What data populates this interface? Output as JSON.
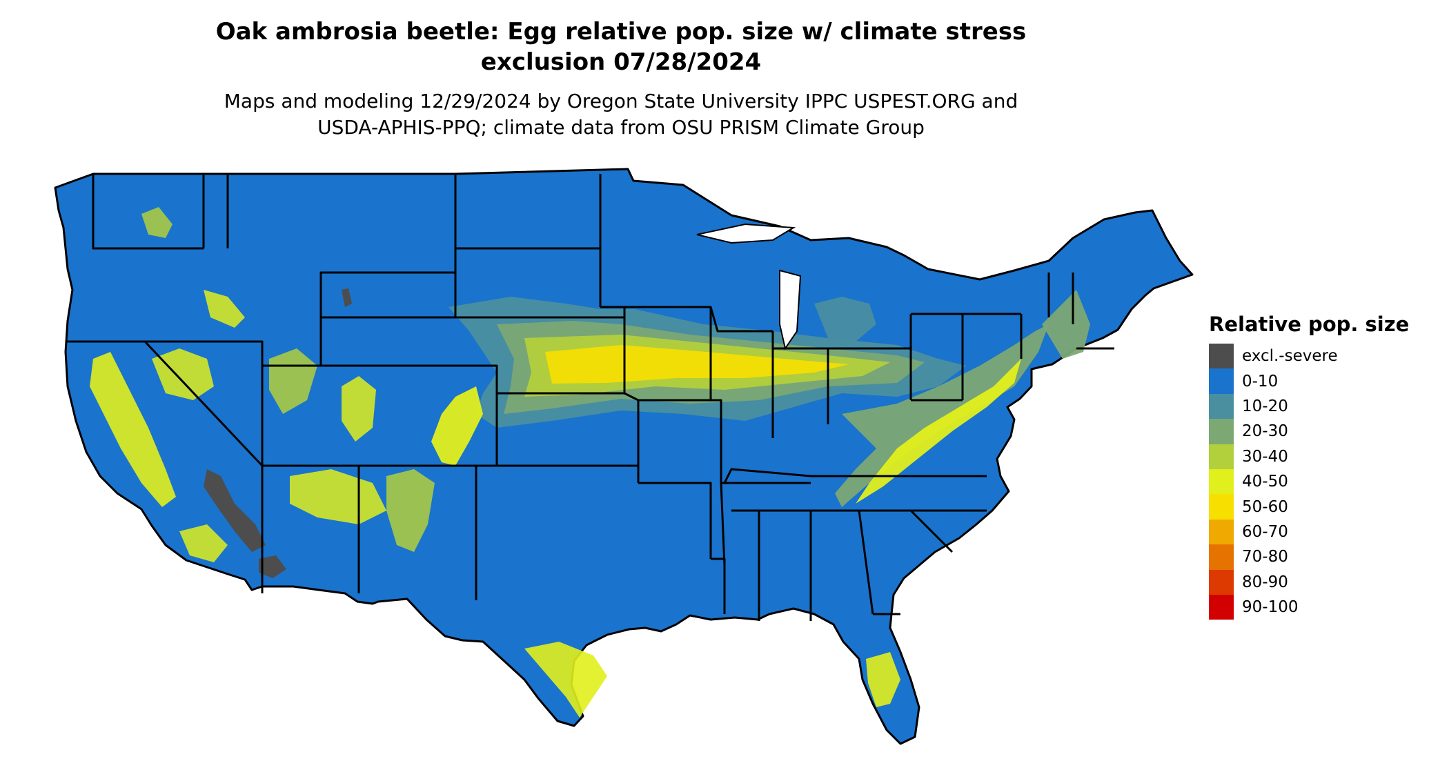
{
  "title_line1": "Oak ambrosia beetle: Egg relative pop. size w/ climate stress",
  "title_line2": "exclusion 07/28/2024",
  "subtitle_line1": "Maps and modeling 12/29/2024 by Oregon State University IPPC USPEST.ORG and",
  "subtitle_line2": "USDA-APHIS-PPQ; climate data from OSU PRISM Climate Group",
  "legend": {
    "title": "Relative pop. size",
    "items": [
      {
        "label": "excl.-severe",
        "color": "#4d4d4d"
      },
      {
        "label": "0-10",
        "color": "#1a73cc"
      },
      {
        "label": "10-20",
        "color": "#4a8fa0"
      },
      {
        "label": "20-30",
        "color": "#7ca874"
      },
      {
        "label": "30-40",
        "color": "#b2cf3c"
      },
      {
        "label": "40-50",
        "color": "#e1ef1c"
      },
      {
        "label": "50-60",
        "color": "#f7e000"
      },
      {
        "label": "60-70",
        "color": "#efa900"
      },
      {
        "label": "70-80",
        "color": "#e67300"
      },
      {
        "label": "80-90",
        "color": "#dc3a00"
      },
      {
        "label": "90-100",
        "color": "#d20000"
      }
    ]
  },
  "colors": {
    "base": "#1a73cc",
    "border": "#000000"
  }
}
